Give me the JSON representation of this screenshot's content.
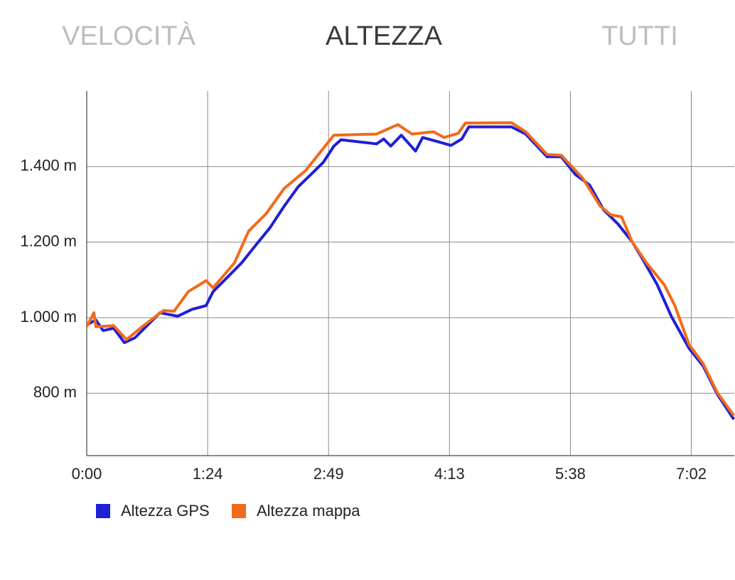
{
  "tabs": [
    "VELOCITÀ",
    "ALTEZZA",
    "TUTTI"
  ],
  "chart_data": {
    "type": "line",
    "xlim": [
      0,
      452
    ],
    "ylim": [
      635,
      1600
    ],
    "xticks": [
      {
        "value": 0,
        "label": "0:00"
      },
      {
        "value": 84.4,
        "label": "1:24"
      },
      {
        "value": 168.8,
        "label": "2:49"
      },
      {
        "value": 253.2,
        "label": "4:13"
      },
      {
        "value": 337.6,
        "label": "5:38"
      },
      {
        "value": 422,
        "label": "7:02"
      }
    ],
    "yticks": [
      {
        "value": 800,
        "label": "800 m"
      },
      {
        "value": 1000,
        "label": "1.000 m"
      },
      {
        "value": 1200,
        "label": "1.200 m"
      },
      {
        "value": 1400,
        "label": "1.400 m"
      }
    ],
    "grid": true,
    "series": [
      {
        "name": "Altezza GPS",
        "color": "#1f1fd6",
        "x": [
          0,
          6.4,
          11.4,
          18.8,
          26.3,
          33.7,
          41.1,
          51.1,
          63.5,
          73.4,
          83.3,
          88.2,
          98.2,
          108.1,
          118,
          127.9,
          137.8,
          147.7,
          157.6,
          165.1,
          172.5,
          177.5,
          202.3,
          207.3,
          212.2,
          219.6,
          229.5,
          234.5,
          246.9,
          254.3,
          261.8,
          266.7,
          296.5,
          306.4,
          321.3,
          331.2,
          341.1,
          351,
          360.9,
          370.8,
          380.7,
          388.2,
          398.1,
          408,
          420.4,
          430.3,
          440.2,
          451.7
        ],
        "values": [
          981,
          994,
          966,
          972,
          934,
          947,
          975,
          1013,
          1004,
          1022,
          1032,
          1069,
          1107,
          1145,
          1192,
          1238,
          1295,
          1347,
          1383,
          1411,
          1454,
          1471,
          1460,
          1473,
          1454,
          1483,
          1441,
          1477,
          1464,
          1456,
          1473,
          1505,
          1505,
          1486,
          1426,
          1426,
          1379,
          1351,
          1285,
          1248,
          1201,
          1154,
          1088,
          1004,
          919,
          872,
          797,
          731
        ]
      },
      {
        "name": "Altezza mappa",
        "color": "#f26a1b",
        "x": [
          0,
          5,
          6.4,
          18.8,
          27.8,
          38.7,
          53.5,
          61,
          70.9,
          83.3,
          88.2,
          103.1,
          113,
          125.4,
          137.8,
          152.7,
          162.6,
          172.5,
          202.3,
          217.2,
          227.1,
          242,
          249.4,
          259.3,
          264.3,
          296.5,
          306.4,
          321.3,
          331.2,
          346,
          358.5,
          365.9,
          373.3,
          380.7,
          390.7,
          403,
          410.5,
          420.4,
          430.3,
          440.2,
          451.7
        ],
        "values": [
          976,
          1013,
          976,
          979,
          942,
          976,
          1019,
          1017,
          1069,
          1098,
          1079,
          1145,
          1229,
          1276,
          1342,
          1389,
          1436,
          1483,
          1486,
          1511,
          1486,
          1492,
          1477,
          1488,
          1515,
          1516,
          1492,
          1432,
          1430,
          1370,
          1295,
          1272,
          1267,
          1201,
          1145,
          1088,
          1032,
          929,
          878,
          801,
          741
        ]
      }
    ]
  }
}
